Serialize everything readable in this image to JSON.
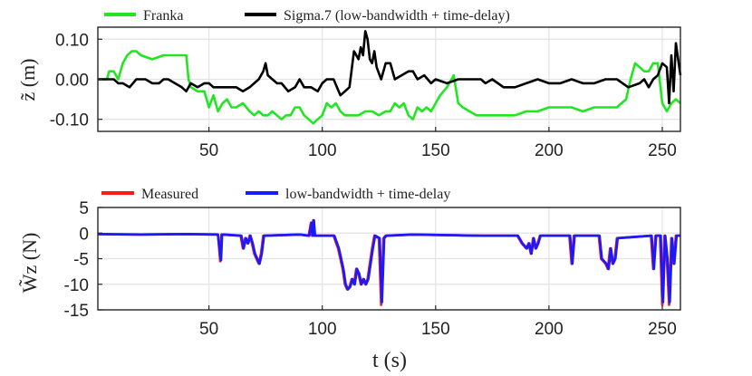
{
  "chart_data": [
    {
      "type": "line",
      "ylabel": "z̃ (m)",
      "xlim": [
        1,
        258
      ],
      "ylim": [
        -0.13,
        0.13
      ],
      "xticks": [
        50,
        100,
        150,
        200,
        250
      ],
      "yticks": [
        0.1,
        0.0,
        -0.1
      ],
      "ytick_labels": [
        "0.10",
        "0.00",
        "-0.10"
      ],
      "xtick_labels": [
        "50",
        "100",
        "150",
        "200",
        "250"
      ],
      "grid": true,
      "legend_position": "top, outside",
      "series": [
        {
          "name": "Franka",
          "color": "#22e622",
          "x": [
            1,
            5,
            6,
            8,
            10,
            12,
            14,
            16,
            18,
            20,
            25,
            30,
            35,
            38,
            40,
            41,
            42,
            45,
            48,
            50,
            52,
            54,
            55,
            56,
            58,
            60,
            62,
            65,
            68,
            70,
            72,
            74,
            76,
            78,
            80,
            82,
            84,
            86,
            88,
            90,
            92,
            94,
            96,
            98,
            100,
            102,
            104,
            106,
            108,
            110,
            113,
            116,
            119,
            122,
            125,
            128,
            130,
            132,
            134,
            136,
            138,
            140,
            142,
            144,
            146,
            148,
            150,
            152,
            155,
            158,
            160,
            162,
            165,
            168,
            170,
            175,
            180,
            185,
            190,
            195,
            200,
            205,
            210,
            215,
            220,
            225,
            230,
            232,
            234,
            236,
            238,
            240,
            242,
            244,
            246,
            248,
            250,
            252,
            254,
            256,
            258
          ],
          "values": [
            0.0,
            0.0,
            0.02,
            0.02,
            0.0,
            0.04,
            0.06,
            0.07,
            0.07,
            0.06,
            0.05,
            0.06,
            0.06,
            0.06,
            0.06,
            0.0,
            -0.02,
            -0.03,
            -0.03,
            -0.07,
            -0.04,
            -0.08,
            -0.07,
            -0.06,
            -0.05,
            -0.07,
            -0.07,
            -0.06,
            -0.08,
            -0.09,
            -0.08,
            -0.09,
            -0.09,
            -0.08,
            -0.09,
            -0.1,
            -0.09,
            -0.09,
            -0.07,
            -0.07,
            -0.09,
            -0.1,
            -0.11,
            -0.1,
            -0.09,
            -0.06,
            -0.07,
            -0.06,
            -0.08,
            -0.09,
            -0.09,
            -0.09,
            -0.08,
            -0.08,
            -0.09,
            -0.08,
            -0.08,
            -0.06,
            -0.07,
            -0.06,
            -0.09,
            -0.1,
            -0.07,
            -0.08,
            -0.07,
            -0.08,
            -0.06,
            -0.04,
            -0.02,
            0.01,
            -0.06,
            -0.07,
            -0.08,
            -0.09,
            -0.09,
            -0.09,
            -0.09,
            -0.09,
            -0.08,
            -0.08,
            -0.07,
            -0.07,
            -0.07,
            -0.08,
            -0.07,
            -0.07,
            -0.07,
            -0.06,
            -0.05,
            0.0,
            0.04,
            0.03,
            0.02,
            0.02,
            0.04,
            0.04,
            -0.06,
            -0.08,
            -0.06,
            -0.05,
            -0.06
          ]
        },
        {
          "name": "Sigma.7 (low-bandwidth + time-delay)",
          "color": "#000000",
          "x": [
            1,
            5,
            8,
            10,
            12,
            15,
            18,
            20,
            22,
            25,
            28,
            30,
            32,
            35,
            38,
            40,
            42,
            45,
            48,
            50,
            52,
            55,
            58,
            60,
            62,
            65,
            68,
            70,
            72,
            74,
            75,
            76,
            78,
            80,
            82,
            85,
            88,
            90,
            92,
            95,
            98,
            100,
            102,
            105,
            108,
            110,
            112,
            114,
            116,
            117,
            118,
            119,
            120,
            121,
            122,
            123,
            124,
            126,
            128,
            130,
            132,
            135,
            138,
            140,
            142,
            145,
            148,
            150,
            155,
            160,
            165,
            170,
            172,
            175,
            180,
            185,
            190,
            195,
            200,
            205,
            210,
            215,
            220,
            225,
            230,
            235,
            240,
            242,
            244,
            246,
            248,
            250,
            252,
            253,
            254,
            255,
            256,
            258
          ],
          "values": [
            0.0,
            0.0,
            0.0,
            -0.01,
            -0.01,
            -0.02,
            0.0,
            0.0,
            0.0,
            -0.01,
            -0.01,
            0.0,
            0.0,
            -0.01,
            -0.02,
            -0.03,
            -0.01,
            -0.02,
            -0.01,
            -0.01,
            -0.02,
            -0.02,
            -0.02,
            -0.02,
            -0.02,
            -0.03,
            -0.02,
            -0.01,
            0.0,
            0.02,
            0.04,
            0.01,
            0.0,
            -0.01,
            -0.01,
            -0.03,
            -0.02,
            0.0,
            -0.02,
            -0.02,
            -0.03,
            -0.01,
            0.0,
            0.0,
            -0.04,
            -0.03,
            -0.02,
            0.07,
            0.05,
            0.08,
            0.06,
            0.12,
            0.1,
            0.05,
            0.04,
            0.07,
            0.03,
            0.0,
            0.04,
            0.04,
            0.0,
            0.01,
            0.02,
            0.02,
            0.0,
            0.01,
            -0.01,
            0.0,
            -0.01,
            0.0,
            0.0,
            0.0,
            -0.01,
            0.0,
            -0.02,
            -0.02,
            -0.01,
            0.0,
            -0.01,
            -0.01,
            0.0,
            -0.01,
            -0.01,
            0.0,
            0.0,
            -0.02,
            -0.01,
            0.0,
            -0.02,
            0.0,
            0.01,
            0.04,
            0.03,
            -0.06,
            0.06,
            -0.03,
            0.09,
            0.01
          ]
        }
      ]
    },
    {
      "type": "line",
      "ylabel": "W̃z (N)",
      "xlabel": "t (s)",
      "xlim": [
        1,
        258
      ],
      "ylim": [
        -15,
        5
      ],
      "xticks": [
        50,
        100,
        150,
        200,
        250
      ],
      "yticks": [
        5,
        0,
        -5,
        -10,
        -15
      ],
      "ytick_labels": [
        "5",
        "0",
        "-5",
        "-10",
        "-15"
      ],
      "xtick_labels": [
        "50",
        "100",
        "150",
        "200",
        "250"
      ],
      "grid": true,
      "legend_position": "top, outside",
      "series": [
        {
          "name": "Measured",
          "color": "#ff1a1a",
          "x": [
            1,
            20,
            40,
            54,
            55,
            55.5,
            56,
            64,
            65,
            66,
            67,
            68,
            69,
            70,
            71,
            72,
            73,
            74,
            90,
            94,
            95,
            95.5,
            96,
            96.5,
            97,
            105,
            107,
            109,
            110,
            111,
            112,
            113,
            114,
            115,
            116,
            117,
            118,
            119,
            120,
            121,
            122,
            123,
            125,
            126,
            127,
            128,
            140,
            170,
            186,
            188,
            190,
            191,
            192,
            193,
            194,
            195,
            196,
            209,
            210,
            211,
            222,
            223,
            225,
            226,
            227,
            228,
            229,
            230,
            245,
            246,
            247,
            248,
            249,
            250,
            251,
            252,
            253,
            254,
            255,
            256,
            258
          ],
          "values": [
            -0.2,
            -0.3,
            -0.2,
            -0.3,
            -5.5,
            -0.3,
            -0.3,
            -0.5,
            -3,
            -1,
            -2,
            -0.5,
            -2,
            -4,
            -5,
            -6,
            -4,
            -0.5,
            -0.3,
            -0.5,
            2,
            -0.5,
            2.5,
            -0.5,
            -0.5,
            -0.5,
            -3,
            -7,
            -10,
            -11,
            -10.5,
            -9,
            -10,
            -7,
            -8,
            -10,
            -9,
            -10,
            -9,
            -6,
            -3,
            -0.5,
            -1,
            -14,
            -1,
            -0.5,
            -0.3,
            -0.5,
            -0.5,
            -2,
            -3,
            -2,
            -4,
            -1,
            -3,
            -2,
            -0.5,
            -0.5,
            -6,
            -0.5,
            -0.5,
            -5,
            -6,
            -7,
            -3,
            -6,
            -5,
            -1,
            -0.5,
            -7,
            -0.5,
            -0.5,
            -0.5,
            -14,
            -0.5,
            -5,
            -14,
            -1,
            -6,
            -0.5,
            -0.5
          ]
        },
        {
          "name": "low-bandwidth + time-delay",
          "color": "#1a1aff",
          "x": [
            1,
            20,
            40,
            54,
            55.3,
            55.8,
            56.3,
            64.3,
            65.3,
            66.3,
            67.3,
            68.3,
            69.3,
            70.3,
            71.3,
            72.3,
            73.3,
            74.3,
            90,
            94.3,
            95.3,
            95.8,
            96.3,
            96.8,
            97.3,
            105.3,
            107.3,
            109.3,
            110.3,
            111.3,
            112.3,
            113.3,
            114.3,
            115.3,
            116.3,
            117.3,
            118.3,
            119.3,
            120.3,
            121.3,
            122.3,
            123.3,
            125.3,
            126.3,
            127.3,
            128.3,
            140,
            170,
            186.3,
            188.3,
            190.3,
            191.3,
            192.3,
            193.3,
            194.3,
            195.3,
            196.3,
            209.3,
            210.3,
            211.3,
            222.3,
            223.3,
            225.3,
            226.3,
            227.3,
            228.3,
            229.3,
            230.3,
            245.3,
            246.3,
            247.3,
            248.3,
            249.3,
            250.3,
            251.3,
            252.3,
            253.3,
            254.3,
            255.3,
            256.3,
            258
          ],
          "values": [
            -0.2,
            -0.3,
            -0.2,
            -0.3,
            -5.3,
            -0.3,
            -0.3,
            -0.5,
            -3,
            -1,
            -2,
            -0.5,
            -2,
            -4,
            -5,
            -6,
            -4,
            -0.5,
            -0.3,
            -0.5,
            2,
            -0.5,
            2.5,
            -0.5,
            -0.5,
            -0.5,
            -3,
            -7,
            -10,
            -11,
            -10.5,
            -9,
            -10,
            -7,
            -8,
            -10,
            -9,
            -10,
            -9,
            -6,
            -3,
            -0.5,
            -1,
            -13.5,
            -1,
            -0.5,
            -0.3,
            -0.5,
            -0.5,
            -2,
            -3,
            -2,
            -4,
            -1,
            -3,
            -2,
            -0.5,
            -0.5,
            -6,
            -0.5,
            -0.5,
            -5,
            -6,
            -7,
            -3,
            -6,
            -5,
            -1,
            -0.5,
            -7,
            -0.5,
            -0.5,
            -0.5,
            -13.5,
            -0.5,
            -5,
            -13.5,
            -1,
            -6,
            -0.5,
            -0.5
          ]
        }
      ]
    }
  ]
}
